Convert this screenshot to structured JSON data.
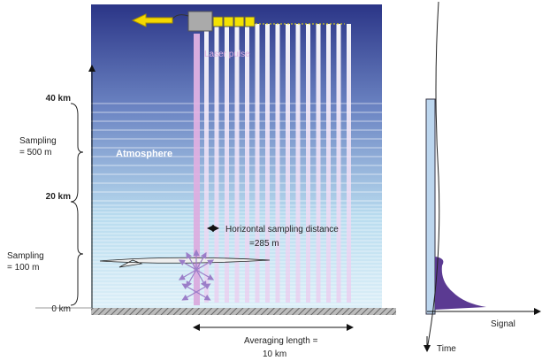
{
  "altitude_labels": [
    "40 km",
    "20 km",
    "0 km"
  ],
  "sampling_labels": [
    [
      "Sampling",
      "= 500 m"
    ],
    [
      "Sampling",
      "= 100 m"
    ]
  ],
  "atmosphere_label": "Atmosphere",
  "laser_label": "Laser pulse",
  "horizontal_sampling": [
    "Horizontal sampling distance",
    "=285 m"
  ],
  "averaging_length": [
    "Averaging length =",
    "10 km"
  ],
  "signal_axis": "Signal",
  "time_axis": "Time"
}
